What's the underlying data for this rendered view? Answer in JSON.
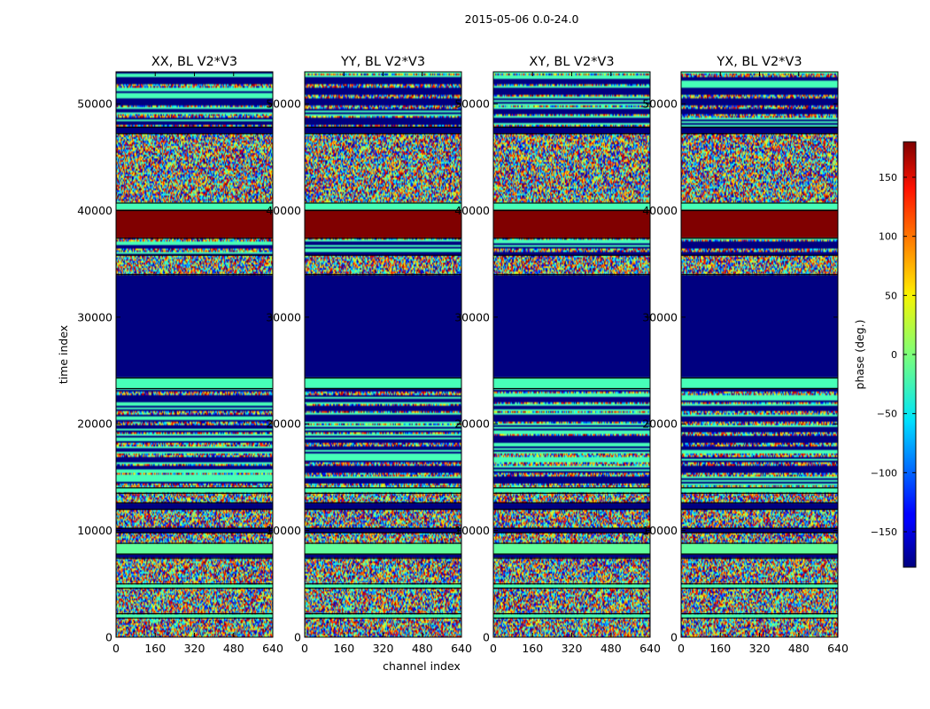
{
  "chart_data": {
    "type": "heatmap",
    "suptitle": "2015-05-06 0.0-24.0",
    "xlabel": "channel index",
    "ylabel": "time index",
    "xlim": [
      0,
      640
    ],
    "ylim": [
      0,
      53000
    ],
    "xticks": [
      0,
      160,
      320,
      480,
      640
    ],
    "xtick_labels": [
      "0",
      "160",
      "320",
      "480",
      "640"
    ],
    "yticks": [
      0,
      10000,
      20000,
      30000,
      40000,
      50000
    ],
    "ytick_labels": [
      "0",
      "10000",
      "20000",
      "30000",
      "40000",
      "50000"
    ],
    "panels": [
      {
        "title": "XX, BL V2*V3"
      },
      {
        "title": "YY, BL V2*V3"
      },
      {
        "title": "XY, BL V2*V3"
      },
      {
        "title": "YX, BL V2*V3"
      }
    ],
    "colorbar": {
      "label": "phase (deg.)",
      "min": -180,
      "max": 180,
      "colormap": "jet",
      "ticks": [
        150,
        100,
        50,
        0,
        -50,
        -100,
        -150
      ],
      "tick_labels": [
        "150",
        "100",
        "50",
        "0",
        "−50",
        "−100",
        "−150"
      ]
    },
    "bands": [
      {
        "from": 0,
        "to": 1800,
        "kind": "noise"
      },
      {
        "from": 1800,
        "to": 2200,
        "kind": "value",
        "phase": -20
      },
      {
        "from": 2200,
        "to": 4600,
        "kind": "noise"
      },
      {
        "from": 4600,
        "to": 5000,
        "kind": "value",
        "phase": -20
      },
      {
        "from": 5000,
        "to": 7400,
        "kind": "noise"
      },
      {
        "from": 7400,
        "to": 7800,
        "kind": "value",
        "phase": -180
      },
      {
        "from": 7800,
        "to": 8800,
        "kind": "value",
        "phase": -10
      },
      {
        "from": 8800,
        "to": 9800,
        "kind": "noise"
      },
      {
        "from": 9800,
        "to": 10200,
        "kind": "value",
        "phase": -180
      },
      {
        "from": 10200,
        "to": 12000,
        "kind": "noise"
      },
      {
        "from": 12000,
        "to": 12600,
        "kind": "value",
        "phase": -180
      },
      {
        "from": 12600,
        "to": 13500,
        "kind": "noise"
      },
      {
        "from": 13500,
        "to": 14000,
        "kind": "value",
        "phase": -20
      },
      {
        "from": 14000,
        "to": 23300,
        "kind": "striped"
      },
      {
        "from": 23300,
        "to": 24300,
        "kind": "value",
        "phase": -20
      },
      {
        "from": 24300,
        "to": 34000,
        "kind": "value",
        "phase": -180
      },
      {
        "from": 34000,
        "to": 35800,
        "kind": "noise"
      },
      {
        "from": 35800,
        "to": 37400,
        "kind": "striped"
      },
      {
        "from": 37400,
        "to": 40000,
        "kind": "value",
        "phase": 180
      },
      {
        "from": 40000,
        "to": 40700,
        "kind": "value",
        "phase": -20
      },
      {
        "from": 40700,
        "to": 47200,
        "kind": "noise"
      },
      {
        "from": 47200,
        "to": 47800,
        "kind": "value",
        "phase": -180
      },
      {
        "from": 47800,
        "to": 53000,
        "kind": "striped"
      }
    ]
  }
}
